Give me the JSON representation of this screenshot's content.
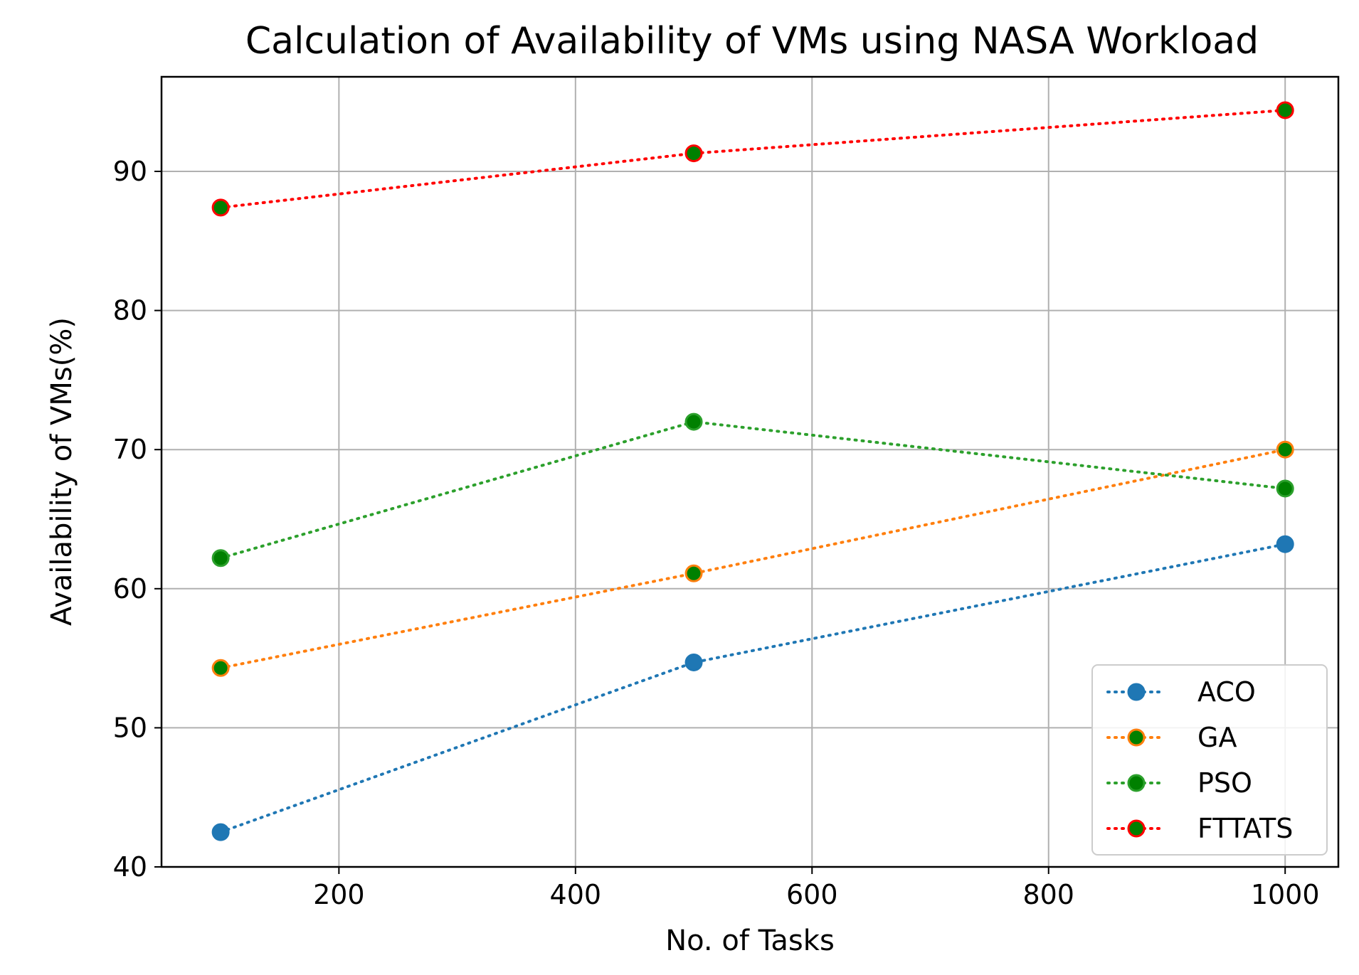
{
  "chart_data": {
    "type": "line",
    "title": "Calculation of Availability of VMs using NASA Workload",
    "xlabel": "No. of Tasks",
    "ylabel": "Availability of VMs(%)",
    "x": [
      100,
      500,
      1000
    ],
    "xlim": [
      50,
      1045
    ],
    "ylim": [
      40,
      96.8
    ],
    "xticks": [
      200,
      400,
      600,
      800,
      1000
    ],
    "yticks": [
      40,
      50,
      60,
      70,
      80,
      90
    ],
    "grid": true,
    "legend_position": "lower-right",
    "series": [
      {
        "name": "ACO",
        "values": [
          42.5,
          54.7,
          63.2
        ],
        "line_color": "#1f77b4",
        "marker_face": "#1f77b4",
        "marker_edge": "#1f77b4"
      },
      {
        "name": "GA",
        "values": [
          54.3,
          61.1,
          70.0
        ],
        "line_color": "#ff7f0e",
        "marker_face": "#008000",
        "marker_edge": "#ff7f0e"
      },
      {
        "name": "PSO",
        "values": [
          62.2,
          72.0,
          67.2
        ],
        "line_color": "#2ca02c",
        "marker_face": "#008000",
        "marker_edge": "#2ca02c"
      },
      {
        "name": "FTTATS",
        "values": [
          87.4,
          91.3,
          94.4
        ],
        "line_color": "#ff0000",
        "marker_face": "#008000",
        "marker_edge": "#ff0000"
      }
    ]
  }
}
